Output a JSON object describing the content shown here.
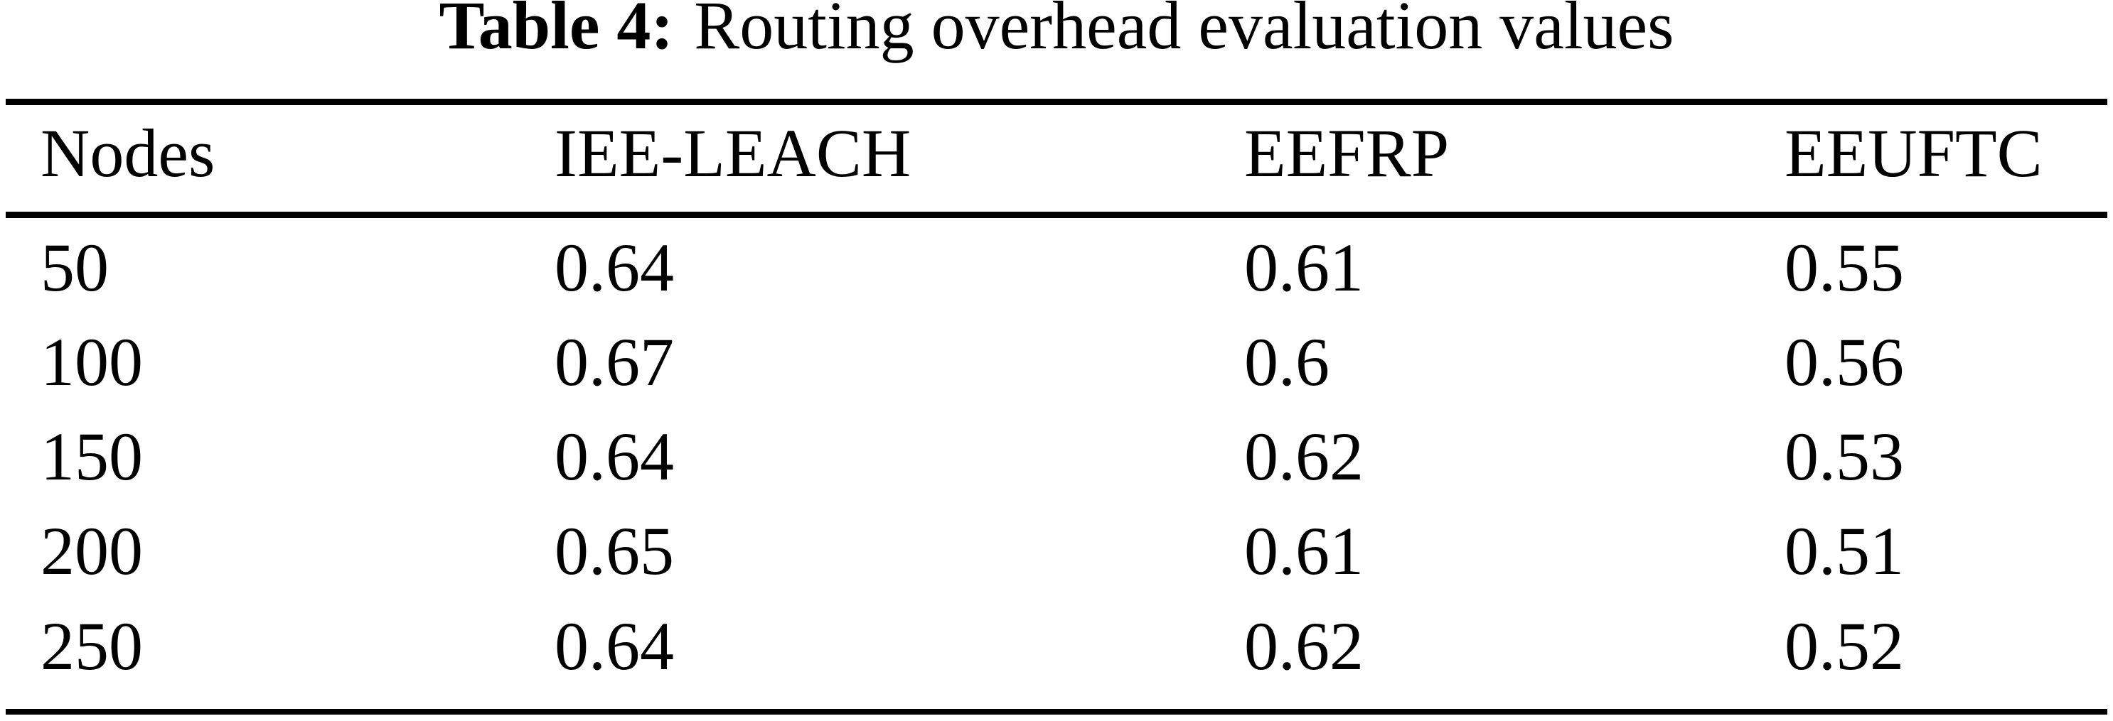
{
  "caption": {
    "label": "Table 4:",
    "text": "Routing overhead evaluation values"
  },
  "table": {
    "columns": [
      "Nodes",
      "IEE-LEACH",
      "EEFRP",
      "EEUFTC"
    ],
    "rows": [
      [
        "50",
        "0.64",
        "0.61",
        "0.55"
      ],
      [
        "100",
        "0.67",
        "0.6",
        "0.56"
      ],
      [
        "150",
        "0.64",
        "0.62",
        "0.53"
      ],
      [
        "200",
        "0.65",
        "0.61",
        "0.51"
      ],
      [
        "250",
        "0.64",
        "0.62",
        "0.52"
      ]
    ]
  },
  "colors": {
    "text": "#000000",
    "background": "#ffffff",
    "rule": "#000000"
  },
  "chart_data": {
    "type": "table",
    "title": "Table 4: Routing overhead evaluation values",
    "categories": [
      50,
      100,
      150,
      200,
      250
    ],
    "xlabel": "Nodes",
    "series": [
      {
        "name": "IEE-LEACH",
        "values": [
          0.64,
          0.67,
          0.64,
          0.65,
          0.64
        ]
      },
      {
        "name": "EEFRP",
        "values": [
          0.61,
          0.6,
          0.62,
          0.61,
          0.62
        ]
      },
      {
        "name": "EEUFTC",
        "values": [
          0.55,
          0.56,
          0.53,
          0.51,
          0.52
        ]
      }
    ]
  }
}
